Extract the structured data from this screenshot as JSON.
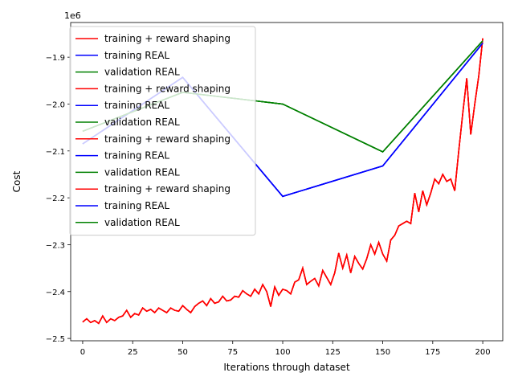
{
  "chart_data": {
    "type": "line",
    "x_label": "Iterations through dataset",
    "y_label": "Cost",
    "y_offset_label": "1e6",
    "xlim": [
      -6,
      210
    ],
    "ylim": [
      -2.505,
      -1.826
    ],
    "xticks": [
      0,
      25,
      50,
      75,
      100,
      125,
      150,
      175,
      200
    ],
    "yticks": [
      {
        "value": -2.5,
        "label": "−2.5"
      },
      {
        "value": -2.4,
        "label": "−2.4"
      },
      {
        "value": -2.3,
        "label": "−2.3"
      },
      {
        "value": -2.2,
        "label": "−2.2"
      },
      {
        "value": -2.1,
        "label": "−2.1"
      },
      {
        "value": -2.0,
        "label": "−2.0"
      },
      {
        "value": -1.9,
        "label": "−1.9"
      }
    ],
    "legend": "upper left",
    "series": [
      {
        "name": "training + reward shaping",
        "color": "#ff0000",
        "x": [
          0,
          2,
          4,
          6,
          8,
          10,
          12,
          14,
          16,
          18,
          20,
          22,
          24,
          26,
          28,
          30,
          32,
          34,
          36,
          38,
          40,
          42,
          44,
          46,
          48,
          50,
          52,
          54,
          56,
          58,
          60,
          62,
          64,
          66,
          68,
          70,
          72,
          74,
          76,
          78,
          80,
          82,
          84,
          86,
          88,
          90,
          92,
          94,
          96,
          98,
          100,
          102,
          104,
          106,
          108,
          110,
          112,
          114,
          116,
          118,
          120,
          122,
          124,
          126,
          128,
          130,
          132,
          134,
          136,
          138,
          140,
          142,
          144,
          146,
          148,
          150,
          152,
          154,
          156,
          158,
          160,
          162,
          164,
          166,
          168,
          170,
          172,
          174,
          176,
          178,
          180,
          182,
          184,
          186,
          188,
          190,
          192,
          194,
          196,
          198,
          200
        ],
        "values": [
          -2.465,
          -2.458,
          -2.466,
          -2.462,
          -2.468,
          -2.452,
          -2.466,
          -2.458,
          -2.462,
          -2.455,
          -2.452,
          -2.44,
          -2.455,
          -2.447,
          -2.45,
          -2.435,
          -2.442,
          -2.438,
          -2.445,
          -2.435,
          -2.44,
          -2.445,
          -2.435,
          -2.44,
          -2.442,
          -2.43,
          -2.438,
          -2.445,
          -2.432,
          -2.425,
          -2.42,
          -2.43,
          -2.415,
          -2.425,
          -2.422,
          -2.41,
          -2.42,
          -2.418,
          -2.41,
          -2.412,
          -2.398,
          -2.405,
          -2.41,
          -2.395,
          -2.405,
          -2.385,
          -2.4,
          -2.432,
          -2.39,
          -2.408,
          -2.395,
          -2.398,
          -2.405,
          -2.38,
          -2.375,
          -2.35,
          -2.385,
          -2.378,
          -2.372,
          -2.388,
          -2.355,
          -2.37,
          -2.385,
          -2.36,
          -2.318,
          -2.35,
          -2.322,
          -2.36,
          -2.325,
          -2.34,
          -2.352,
          -2.33,
          -2.3,
          -2.32,
          -2.295,
          -2.32,
          -2.335,
          -2.29,
          -2.28,
          -2.26,
          -2.255,
          -2.25,
          -2.255,
          -2.19,
          -2.23,
          -2.185,
          -2.215,
          -2.19,
          -2.16,
          -2.17,
          -2.15,
          -2.165,
          -2.16,
          -2.185,
          -2.1,
          -2.02,
          -1.945,
          -2.065,
          -2.0,
          -1.94,
          -1.86
        ]
      },
      {
        "name": "training REAL",
        "color": "#0000ff",
        "x": [
          0,
          50,
          100,
          150,
          200
        ],
        "values": [
          -2.085,
          -1.943,
          -2.197,
          -2.132,
          -1.87
        ]
      },
      {
        "name": "validation REAL",
        "color": "#008000",
        "x": [
          0,
          50,
          100,
          150,
          200
        ],
        "values": [
          -2.058,
          -1.975,
          -2.0,
          -2.102,
          -1.865
        ]
      },
      {
        "name": "training + reward shaping",
        "color": "#ff0000",
        "x": [
          0,
          2,
          4,
          6,
          8,
          10,
          12,
          14,
          16,
          18,
          20,
          22,
          24,
          26,
          28,
          30,
          32,
          34,
          36,
          38,
          40,
          42,
          44,
          46,
          48,
          50,
          52,
          54,
          56,
          58,
          60,
          62,
          64,
          66,
          68,
          70,
          72,
          74,
          76,
          78,
          80,
          82,
          84,
          86,
          88,
          90,
          92,
          94,
          96,
          98,
          100,
          102,
          104,
          106,
          108,
          110,
          112,
          114,
          116,
          118,
          120,
          122,
          124,
          126,
          128,
          130,
          132,
          134,
          136,
          138,
          140,
          142,
          144,
          146,
          148,
          150,
          152,
          154,
          156,
          158,
          160,
          162,
          164,
          166,
          168,
          170,
          172,
          174,
          176,
          178,
          180,
          182,
          184,
          186,
          188,
          190,
          192,
          194,
          196,
          198,
          200
        ],
        "values": [
          -2.465,
          -2.458,
          -2.466,
          -2.462,
          -2.468,
          -2.452,
          -2.466,
          -2.458,
          -2.462,
          -2.455,
          -2.452,
          -2.44,
          -2.455,
          -2.447,
          -2.45,
          -2.435,
          -2.442,
          -2.438,
          -2.445,
          -2.435,
          -2.44,
          -2.445,
          -2.435,
          -2.44,
          -2.442,
          -2.43,
          -2.438,
          -2.445,
          -2.432,
          -2.425,
          -2.42,
          -2.43,
          -2.415,
          -2.425,
          -2.422,
          -2.41,
          -2.42,
          -2.418,
          -2.41,
          -2.412,
          -2.398,
          -2.405,
          -2.41,
          -2.395,
          -2.405,
          -2.385,
          -2.4,
          -2.432,
          -2.39,
          -2.408,
          -2.395,
          -2.398,
          -2.405,
          -2.38,
          -2.375,
          -2.35,
          -2.385,
          -2.378,
          -2.372,
          -2.388,
          -2.355,
          -2.37,
          -2.385,
          -2.36,
          -2.318,
          -2.35,
          -2.322,
          -2.36,
          -2.325,
          -2.34,
          -2.352,
          -2.33,
          -2.3,
          -2.32,
          -2.295,
          -2.32,
          -2.335,
          -2.29,
          -2.28,
          -2.26,
          -2.255,
          -2.25,
          -2.255,
          -2.19,
          -2.23,
          -2.185,
          -2.215,
          -2.19,
          -2.16,
          -2.17,
          -2.15,
          -2.165,
          -2.16,
          -2.185,
          -2.1,
          -2.02,
          -1.945,
          -2.065,
          -2.0,
          -1.94,
          -1.86
        ]
      },
      {
        "name": "training REAL",
        "color": "#0000ff",
        "x": [
          0,
          50,
          100,
          150,
          200
        ],
        "values": [
          -2.085,
          -1.943,
          -2.197,
          -2.132,
          -1.87
        ]
      },
      {
        "name": "validation REAL",
        "color": "#008000",
        "x": [
          0,
          50,
          100,
          150,
          200
        ],
        "values": [
          -2.058,
          -1.975,
          -2.0,
          -2.102,
          -1.865
        ]
      },
      {
        "name": "training + reward shaping",
        "color": "#ff0000",
        "x": [
          0,
          2,
          4,
          6,
          8,
          10,
          12,
          14,
          16,
          18,
          20,
          22,
          24,
          26,
          28,
          30,
          32,
          34,
          36,
          38,
          40,
          42,
          44,
          46,
          48,
          50,
          52,
          54,
          56,
          58,
          60,
          62,
          64,
          66,
          68,
          70,
          72,
          74,
          76,
          78,
          80,
          82,
          84,
          86,
          88,
          90,
          92,
          94,
          96,
          98,
          100,
          102,
          104,
          106,
          108,
          110,
          112,
          114,
          116,
          118,
          120,
          122,
          124,
          126,
          128,
          130,
          132,
          134,
          136,
          138,
          140,
          142,
          144,
          146,
          148,
          150,
          152,
          154,
          156,
          158,
          160,
          162,
          164,
          166,
          168,
          170,
          172,
          174,
          176,
          178,
          180,
          182,
          184,
          186,
          188,
          190,
          192,
          194,
          196,
          198,
          200
        ],
        "values": [
          -2.465,
          -2.458,
          -2.466,
          -2.462,
          -2.468,
          -2.452,
          -2.466,
          -2.458,
          -2.462,
          -2.455,
          -2.452,
          -2.44,
          -2.455,
          -2.447,
          -2.45,
          -2.435,
          -2.442,
          -2.438,
          -2.445,
          -2.435,
          -2.44,
          -2.445,
          -2.435,
          -2.44,
          -2.442,
          -2.43,
          -2.438,
          -2.445,
          -2.432,
          -2.425,
          -2.42,
          -2.43,
          -2.415,
          -2.425,
          -2.422,
          -2.41,
          -2.42,
          -2.418,
          -2.41,
          -2.412,
          -2.398,
          -2.405,
          -2.41,
          -2.395,
          -2.405,
          -2.385,
          -2.4,
          -2.432,
          -2.39,
          -2.408,
          -2.395,
          -2.398,
          -2.405,
          -2.38,
          -2.375,
          -2.35,
          -2.385,
          -2.378,
          -2.372,
          -2.388,
          -2.355,
          -2.37,
          -2.385,
          -2.36,
          -2.318,
          -2.35,
          -2.322,
          -2.36,
          -2.325,
          -2.34,
          -2.352,
          -2.33,
          -2.3,
          -2.32,
          -2.295,
          -2.32,
          -2.335,
          -2.29,
          -2.28,
          -2.26,
          -2.255,
          -2.25,
          -2.255,
          -2.19,
          -2.23,
          -2.185,
          -2.215,
          -2.19,
          -2.16,
          -2.17,
          -2.15,
          -2.165,
          -2.16,
          -2.185,
          -2.1,
          -2.02,
          -1.945,
          -2.065,
          -2.0,
          -1.94,
          -1.86
        ]
      },
      {
        "name": "training REAL",
        "color": "#0000ff",
        "x": [
          0,
          50,
          100,
          150,
          200
        ],
        "values": [
          -2.085,
          -1.943,
          -2.197,
          -2.132,
          -1.87
        ]
      },
      {
        "name": "validation REAL",
        "color": "#008000",
        "x": [
          0,
          50,
          100,
          150,
          200
        ],
        "values": [
          -2.058,
          -1.975,
          -2.0,
          -2.102,
          -1.865
        ]
      },
      {
        "name": "training + reward shaping",
        "color": "#ff0000",
        "x": [
          0,
          2,
          4,
          6,
          8,
          10,
          12,
          14,
          16,
          18,
          20,
          22,
          24,
          26,
          28,
          30,
          32,
          34,
          36,
          38,
          40,
          42,
          44,
          46,
          48,
          50,
          52,
          54,
          56,
          58,
          60,
          62,
          64,
          66,
          68,
          70,
          72,
          74,
          76,
          78,
          80,
          82,
          84,
          86,
          88,
          90,
          92,
          94,
          96,
          98,
          100,
          102,
          104,
          106,
          108,
          110,
          112,
          114,
          116,
          118,
          120,
          122,
          124,
          126,
          128,
          130,
          132,
          134,
          136,
          138,
          140,
          142,
          144,
          146,
          148,
          150,
          152,
          154,
          156,
          158,
          160,
          162,
          164,
          166,
          168,
          170,
          172,
          174,
          176,
          178,
          180,
          182,
          184,
          186,
          188,
          190,
          192,
          194,
          196,
          198,
          200
        ],
        "values": [
          -2.465,
          -2.458,
          -2.466,
          -2.462,
          -2.468,
          -2.452,
          -2.466,
          -2.458,
          -2.462,
          -2.455,
          -2.452,
          -2.44,
          -2.455,
          -2.447,
          -2.45,
          -2.435,
          -2.442,
          -2.438,
          -2.445,
          -2.435,
          -2.44,
          -2.445,
          -2.435,
          -2.44,
          -2.442,
          -2.43,
          -2.438,
          -2.445,
          -2.432,
          -2.425,
          -2.42,
          -2.43,
          -2.415,
          -2.425,
          -2.422,
          -2.41,
          -2.42,
          -2.418,
          -2.41,
          -2.412,
          -2.398,
          -2.405,
          -2.41,
          -2.395,
          -2.405,
          -2.385,
          -2.4,
          -2.432,
          -2.39,
          -2.408,
          -2.395,
          -2.398,
          -2.405,
          -2.38,
          -2.375,
          -2.35,
          -2.385,
          -2.378,
          -2.372,
          -2.388,
          -2.355,
          -2.37,
          -2.385,
          -2.36,
          -2.318,
          -2.35,
          -2.322,
          -2.36,
          -2.325,
          -2.34,
          -2.352,
          -2.33,
          -2.3,
          -2.32,
          -2.295,
          -2.32,
          -2.335,
          -2.29,
          -2.28,
          -2.26,
          -2.255,
          -2.25,
          -2.255,
          -2.19,
          -2.23,
          -2.185,
          -2.215,
          -2.19,
          -2.16,
          -2.17,
          -2.15,
          -2.165,
          -2.16,
          -2.185,
          -2.1,
          -2.02,
          -1.945,
          -2.065,
          -2.0,
          -1.94,
          -1.86
        ]
      },
      {
        "name": "training REAL",
        "color": "#0000ff",
        "x": [
          0,
          50,
          100,
          150,
          200
        ],
        "values": [
          -2.085,
          -1.943,
          -2.197,
          -2.132,
          -1.87
        ]
      },
      {
        "name": "validation REAL",
        "color": "#008000",
        "x": [
          0,
          50,
          100,
          150,
          200
        ],
        "values": [
          -2.058,
          -1.975,
          -2.0,
          -2.102,
          -1.865
        ]
      }
    ]
  }
}
